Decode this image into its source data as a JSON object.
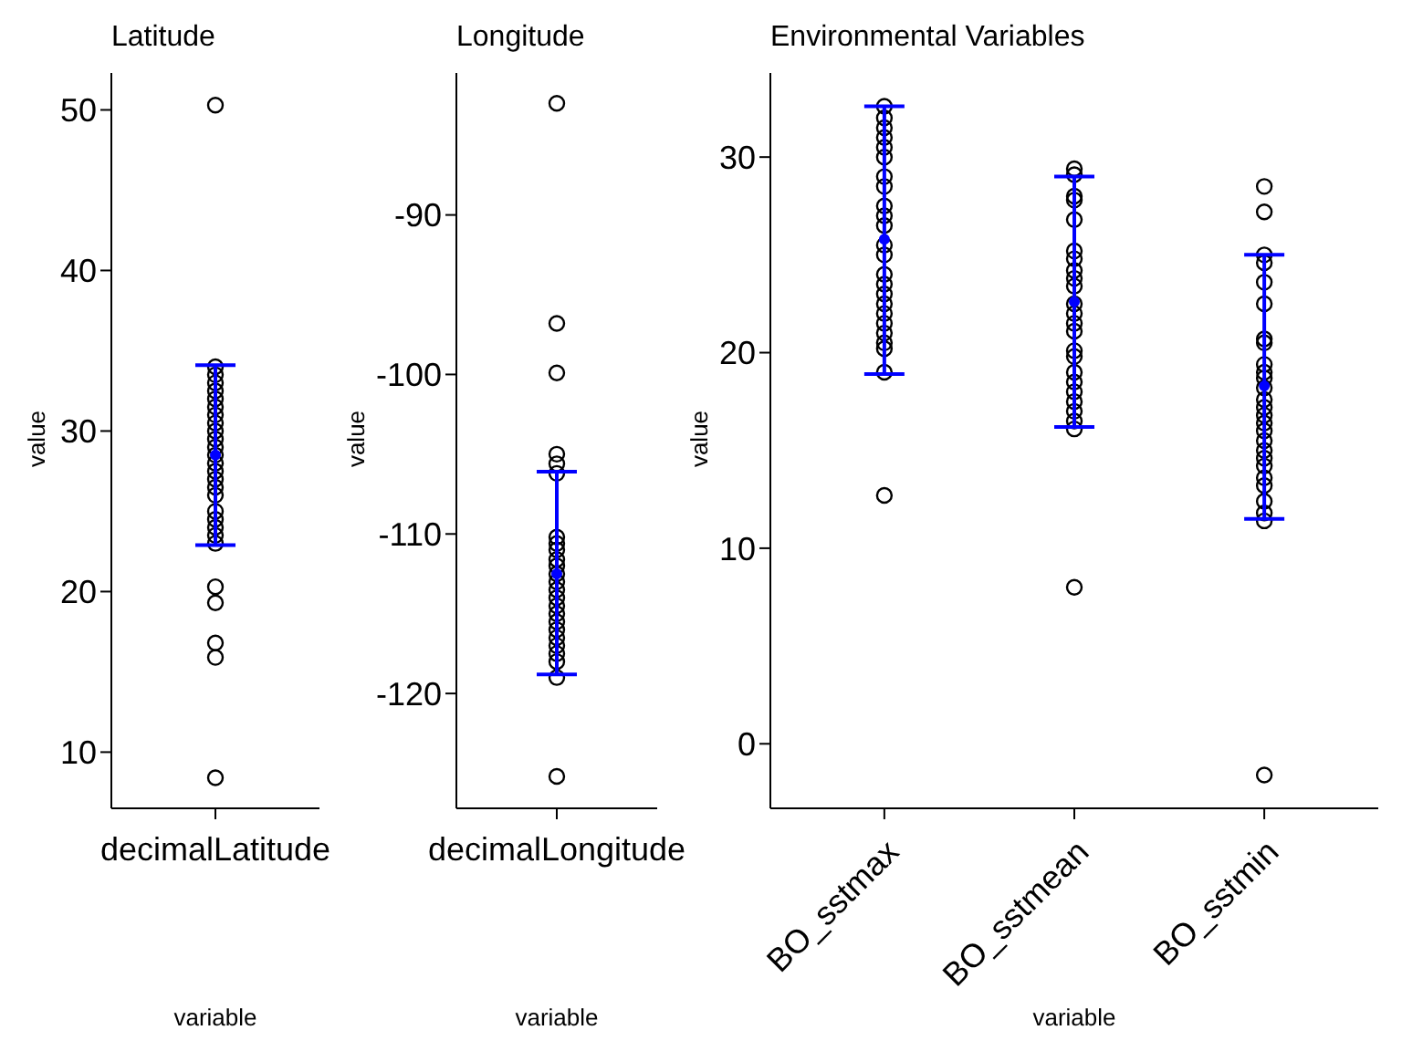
{
  "chart_data": [
    {
      "type": "scatter",
      "title": "Latitude",
      "xlabel": "variable",
      "ylabel": "value",
      "categories": [
        "decimalLatitude"
      ],
      "ylim": [
        6.5,
        52.3
      ],
      "yticks": [
        10,
        20,
        30,
        40,
        50
      ],
      "marker": "circle",
      "series": [
        {
          "color": "#000000",
          "x": [
            "decimalLatitude",
            "decimalLatitude",
            "decimalLatitude",
            "decimalLatitude",
            "decimalLatitude",
            "decimalLatitude",
            "decimalLatitude",
            "decimalLatitude",
            "decimalLatitude",
            "decimalLatitude",
            "decimalLatitude",
            "decimalLatitude",
            "decimalLatitude",
            "decimalLatitude",
            "decimalLatitude",
            "decimalLatitude",
            "decimalLatitude",
            "decimalLatitude",
            "decimalLatitude",
            "decimalLatitude",
            "decimalLatitude",
            "decimalLatitude",
            "decimalLatitude",
            "decimalLatitude",
            "decimalLatitude",
            "decimalLatitude",
            "decimalLatitude",
            "decimalLatitude"
          ],
          "values": [
            50.3,
            34,
            33.5,
            33,
            32.5,
            32,
            31.5,
            31,
            30.5,
            30,
            29.5,
            29,
            28.5,
            28,
            27.5,
            27,
            26.5,
            26,
            25,
            24.5,
            24,
            23.5,
            23,
            20.3,
            19.3,
            16.8,
            15.9,
            8.4
          ]
        },
        {
          "color": "#0000ff",
          "x": [
            "decimalLatitude"
          ],
          "values": [
            28.5
          ],
          "errors": [
            [
              22.9,
              34.1
            ]
          ]
        }
      ]
    },
    {
      "type": "scatter",
      "title": "Longitude",
      "xlabel": "variable",
      "ylabel": "value",
      "categories": [
        "decimalLongitude"
      ],
      "ylim": [
        -127.2,
        -81.1
      ],
      "yticks": [
        -120,
        -110,
        -100,
        -90
      ],
      "marker": "circle",
      "series": [
        {
          "color": "#000000",
          "x": [
            "decimalLongitude",
            "decimalLongitude",
            "decimalLongitude",
            "decimalLongitude",
            "decimalLongitude",
            "decimalLongitude",
            "decimalLongitude",
            "decimalLongitude",
            "decimalLongitude",
            "decimalLongitude",
            "decimalLongitude",
            "decimalLongitude",
            "decimalLongitude",
            "decimalLongitude",
            "decimalLongitude",
            "decimalLongitude",
            "decimalLongitude",
            "decimalLongitude",
            "decimalLongitude",
            "decimalLongitude",
            "decimalLongitude",
            "decimalLongitude",
            "decimalLongitude",
            "decimalLongitude",
            "decimalLongitude"
          ],
          "values": [
            -83,
            -96.8,
            -99.9,
            -105,
            -105.6,
            -106.2,
            -110.2,
            -110.6,
            -111,
            -111.6,
            -112,
            -112.5,
            -113,
            -113.5,
            -114,
            -114.5,
            -115,
            -115.5,
            -116,
            -116.5,
            -117,
            -117.5,
            -118,
            -119,
            -125.2
          ]
        },
        {
          "color": "#0000ff",
          "x": [
            "decimalLongitude"
          ],
          "values": [
            -112.5
          ],
          "errors": [
            [
              -118.8,
              -106.1
            ]
          ]
        }
      ]
    },
    {
      "type": "scatter",
      "title": "Environmental Variables",
      "xlabel": "variable",
      "ylabel": "value",
      "categories": [
        "BO_sstmax",
        "BO_sstmean",
        "BO_sstmin"
      ],
      "ylim": [
        -3.3,
        34.3
      ],
      "yticks": [
        0,
        10,
        20,
        30
      ],
      "marker": "circle",
      "series": [
        {
          "color": "#000000",
          "x": [
            "BO_sstmax",
            "BO_sstmax",
            "BO_sstmax",
            "BO_sstmax",
            "BO_sstmax",
            "BO_sstmax",
            "BO_sstmax",
            "BO_sstmax",
            "BO_sstmax",
            "BO_sstmax",
            "BO_sstmax",
            "BO_sstmax",
            "BO_sstmax",
            "BO_sstmax",
            "BO_sstmax",
            "BO_sstmax",
            "BO_sstmax",
            "BO_sstmax",
            "BO_sstmax",
            "BO_sstmax",
            "BO_sstmax",
            "BO_sstmax",
            "BO_sstmax",
            "BO_sstmax",
            "BO_sstmean",
            "BO_sstmean",
            "BO_sstmean",
            "BO_sstmean",
            "BO_sstmean",
            "BO_sstmean",
            "BO_sstmean",
            "BO_sstmean",
            "BO_sstmean",
            "BO_sstmean",
            "BO_sstmean",
            "BO_sstmean",
            "BO_sstmean",
            "BO_sstmean",
            "BO_sstmean",
            "BO_sstmean",
            "BO_sstmean",
            "BO_sstmean",
            "BO_sstmean",
            "BO_sstmean",
            "BO_sstmean",
            "BO_sstmean",
            "BO_sstmean",
            "BO_sstmean",
            "BO_sstmin",
            "BO_sstmin",
            "BO_sstmin",
            "BO_sstmin",
            "BO_sstmin",
            "BO_sstmin",
            "BO_sstmin",
            "BO_sstmin",
            "BO_sstmin",
            "BO_sstmin",
            "BO_sstmin",
            "BO_sstmin",
            "BO_sstmin",
            "BO_sstmin",
            "BO_sstmin",
            "BO_sstmin",
            "BO_sstmin",
            "BO_sstmin",
            "BO_sstmin",
            "BO_sstmin",
            "BO_sstmin",
            "BO_sstmin",
            "BO_sstmin",
            "BO_sstmin",
            "BO_sstmin",
            "BO_sstmin",
            "BO_sstmin"
          ],
          "values": [
            32.6,
            32,
            31.5,
            31,
            30.5,
            30,
            29,
            28.5,
            27.5,
            27,
            26.5,
            25.5,
            25,
            24,
            23.5,
            23,
            22.5,
            22,
            21.5,
            21,
            20.5,
            20.2,
            19,
            12.7,
            29.4,
            29.1,
            28,
            27.8,
            26.8,
            25.2,
            24.8,
            24.2,
            23.8,
            23.4,
            22.5,
            22,
            21.5,
            21.1,
            20.1,
            19.8,
            19,
            18.5,
            18,
            17.5,
            17,
            16.5,
            16.1,
            8,
            28.5,
            27.2,
            25,
            24.6,
            23.6,
            22.5,
            20.7,
            20.5,
            19.4,
            19,
            18.7,
            18.2,
            17.6,
            17.2,
            16.8,
            16.4,
            16,
            15.5,
            15,
            14.6,
            14.2,
            13.6,
            13.2,
            12.4,
            11.8,
            11.4,
            -1.6
          ]
        },
        {
          "color": "#0000ff",
          "x": [
            "BO_sstmax",
            "BO_sstmean",
            "BO_sstmin"
          ],
          "values": [
            25.8,
            22.6,
            18.3
          ],
          "errors": [
            [
              18.9,
              32.6
            ],
            [
              16.2,
              29.0
            ],
            [
              11.5,
              25.0
            ]
          ]
        }
      ]
    }
  ]
}
